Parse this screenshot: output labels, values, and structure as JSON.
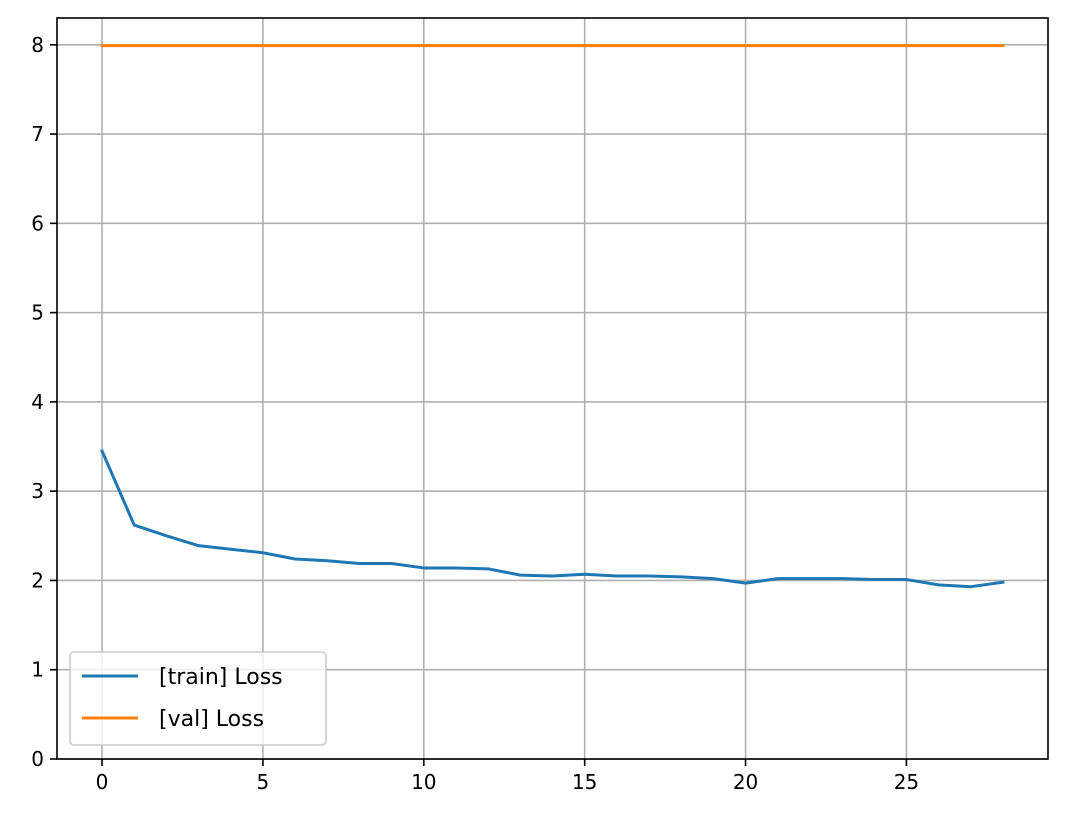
{
  "chart_data": {
    "type": "line",
    "title": "",
    "xlabel": "",
    "ylabel": "",
    "xlim": [
      -1.4,
      29.4
    ],
    "ylim": [
      0,
      8.3
    ],
    "x_ticks": [
      0,
      5,
      10,
      15,
      20,
      25
    ],
    "y_ticks": [
      0,
      1,
      2,
      3,
      4,
      5,
      6,
      7,
      8
    ],
    "grid": true,
    "legend_position": "lower-left",
    "x": [
      0,
      1,
      2,
      3,
      4,
      5,
      6,
      7,
      8,
      9,
      10,
      11,
      12,
      13,
      14,
      15,
      16,
      17,
      18,
      19,
      20,
      21,
      22,
      23,
      24,
      25,
      26,
      27,
      28
    ],
    "series": [
      {
        "name": "[train] Loss",
        "color": "#1f77b4",
        "values": [
          3.45,
          2.62,
          2.5,
          2.39,
          2.35,
          2.31,
          2.24,
          2.22,
          2.19,
          2.19,
          2.14,
          2.14,
          2.13,
          2.06,
          2.05,
          2.07,
          2.05,
          2.05,
          2.04,
          2.02,
          1.97,
          2.02,
          2.02,
          2.02,
          2.01,
          2.01,
          1.95,
          1.93,
          1.98
        ]
      },
      {
        "name": "[val] Loss",
        "color": "#ff7f0e",
        "values": [
          7.99,
          7.99,
          7.99,
          7.99,
          7.99,
          7.99,
          7.99,
          7.99,
          7.99,
          7.99,
          7.99,
          7.99,
          7.99,
          7.99,
          7.99,
          7.99,
          7.99,
          7.99,
          7.99,
          7.99,
          7.99,
          7.99,
          7.99,
          7.99,
          7.99,
          7.99,
          7.99,
          7.99,
          7.99
        ]
      }
    ]
  }
}
